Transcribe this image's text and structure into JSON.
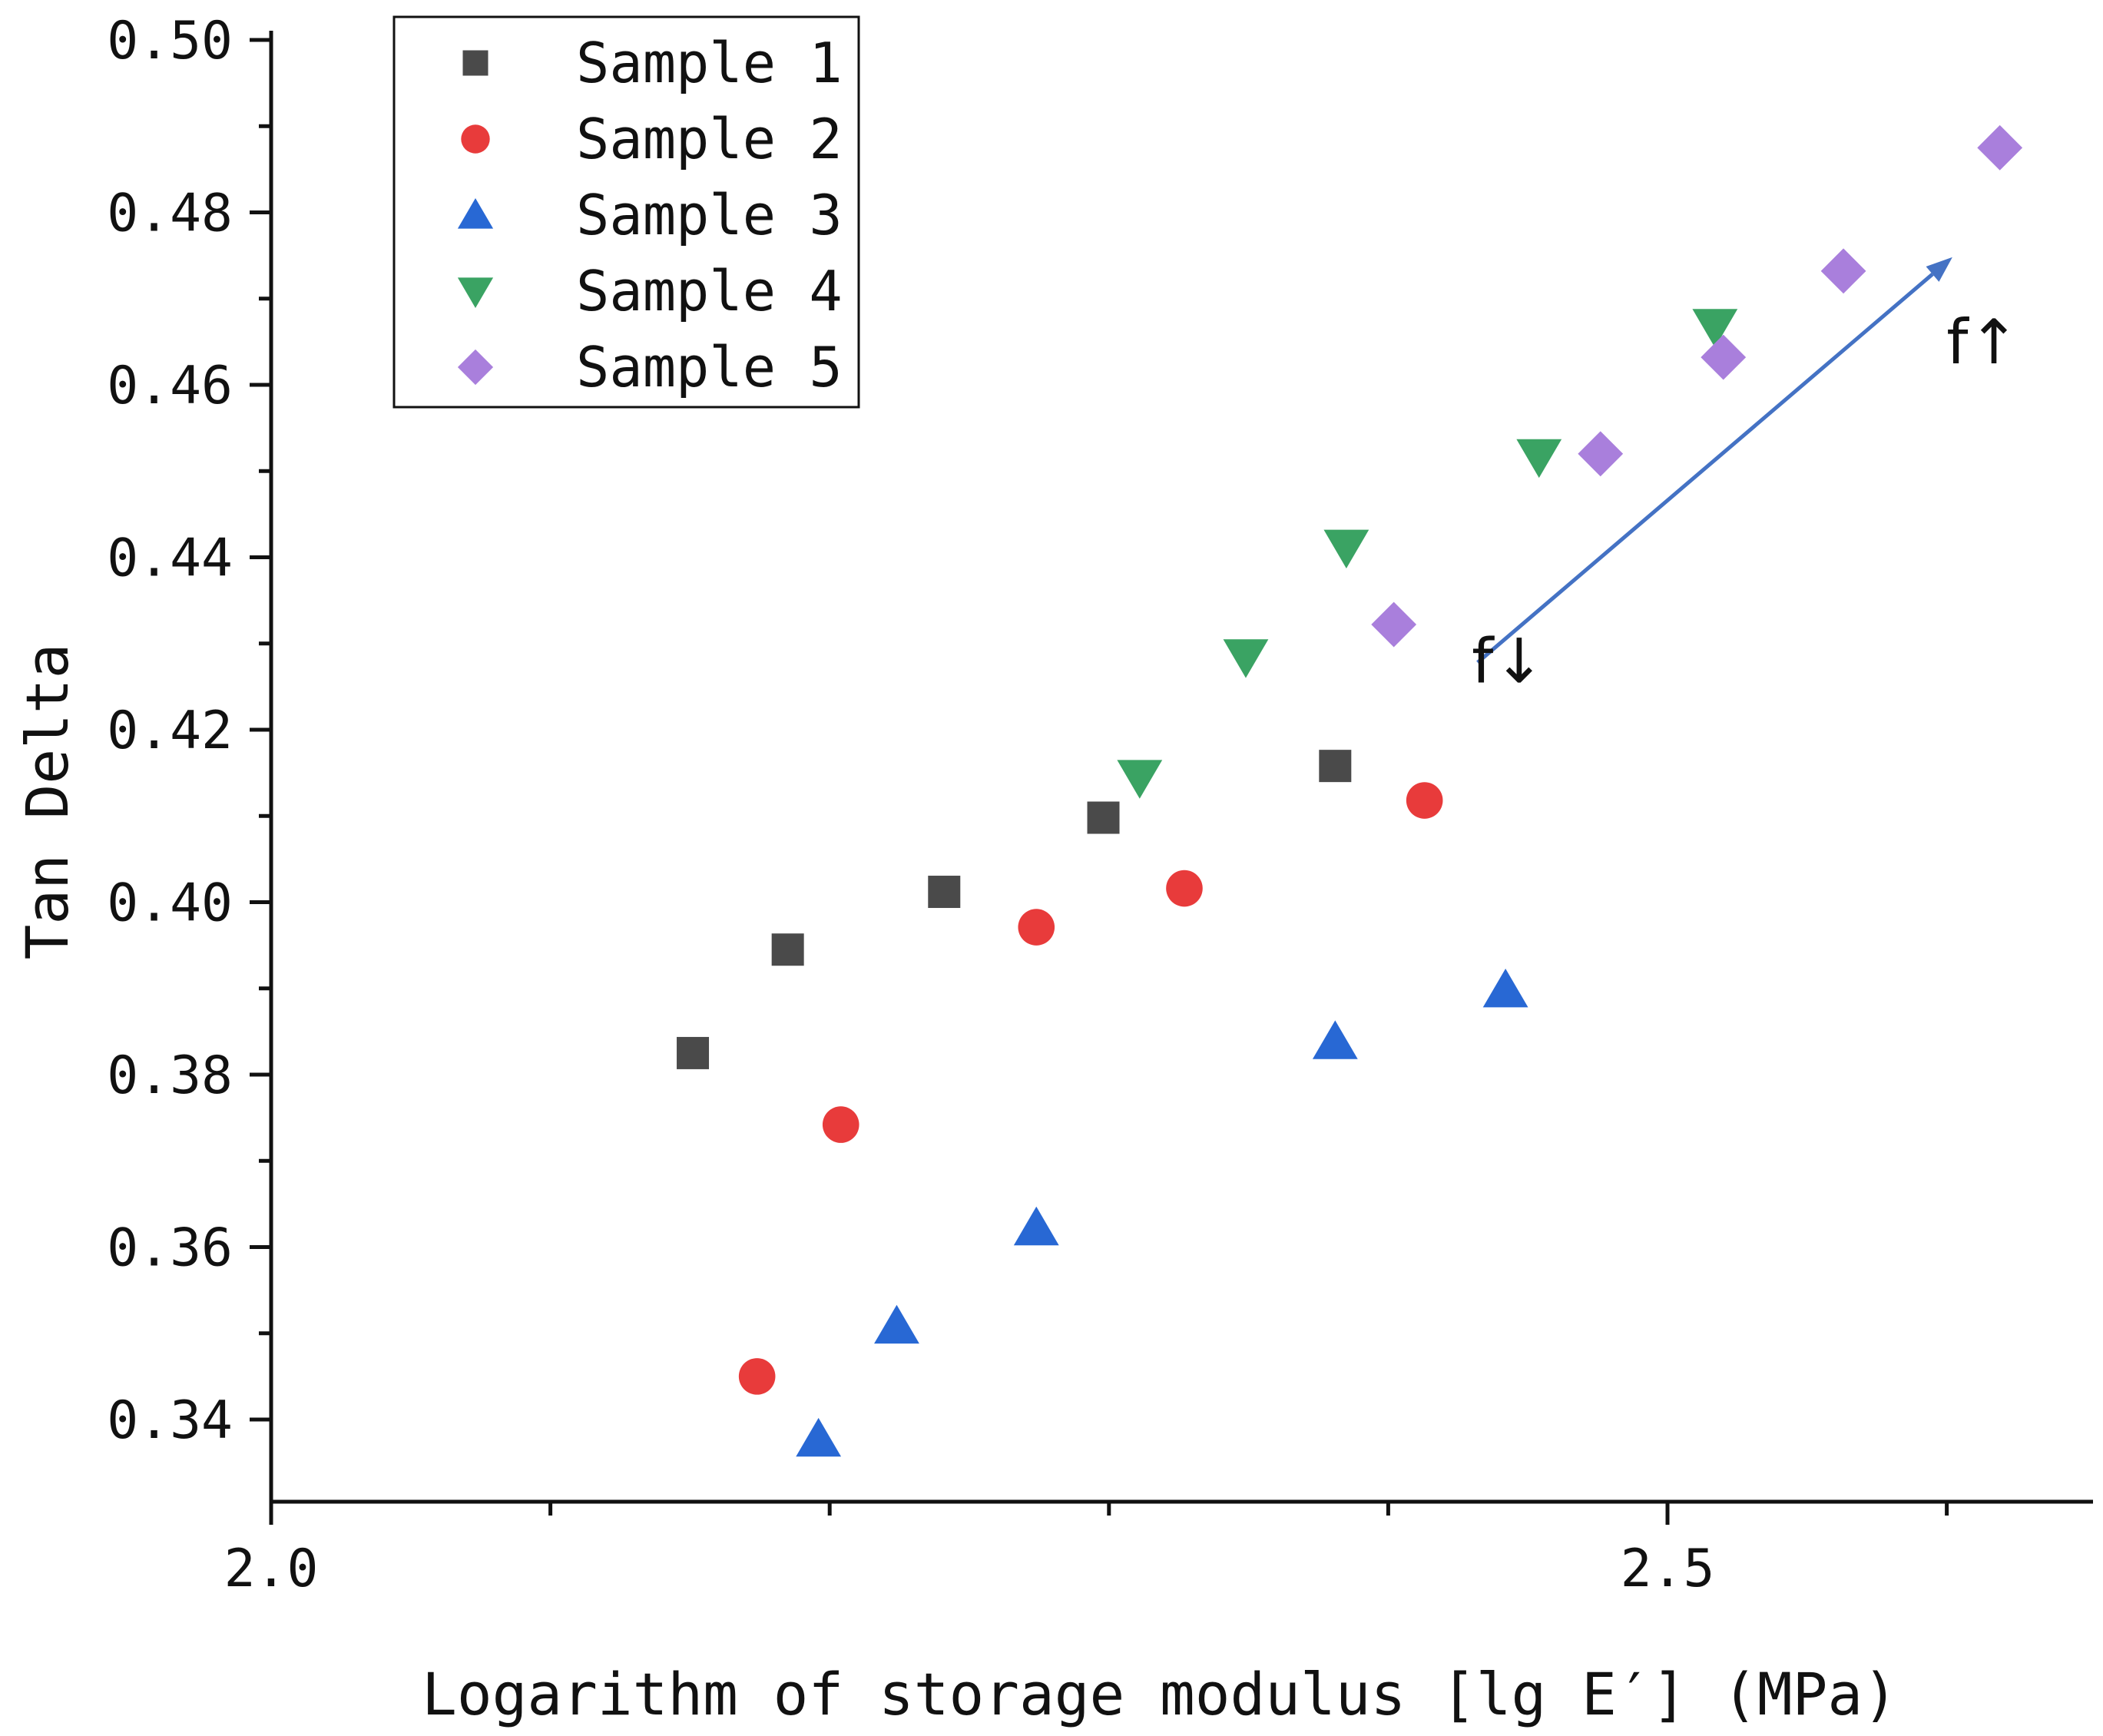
{
  "chart_data": {
    "type": "scatter",
    "xlabel": "Logarithm of storage modulus [lg E′] (MPa)",
    "ylabel": "Tan Delta",
    "xlim": [
      2.0,
      2.65
    ],
    "ylim": [
      0.33,
      0.5
    ],
    "x_ticks": [
      "2.0",
      "2.5"
    ],
    "y_ticks": [
      "0.34",
      "0.36",
      "0.38",
      "0.40",
      "0.42",
      "0.44",
      "0.46",
      "0.48",
      "0.50"
    ],
    "grid": false,
    "legend_position": "top-left",
    "series": [
      {
        "name": "Sample 1",
        "marker": "square",
        "color": "#4a4a4a",
        "points": [
          [
            2.151,
            0.3825
          ],
          [
            2.185,
            0.3945
          ],
          [
            2.241,
            0.4012
          ],
          [
            2.298,
            0.4098
          ],
          [
            2.381,
            0.4158
          ]
        ]
      },
      {
        "name": "Sample 2",
        "marker": "circle",
        "color": "#e83b3b",
        "points": [
          [
            2.174,
            0.345
          ],
          [
            2.204,
            0.3742
          ],
          [
            2.274,
            0.3971
          ],
          [
            2.327,
            0.4016
          ],
          [
            2.413,
            0.4118
          ]
        ]
      },
      {
        "name": "Sample 3",
        "marker": "triangle-up",
        "color": "#2868d4",
        "points": [
          [
            2.196,
            0.3377
          ],
          [
            2.224,
            0.3508
          ],
          [
            2.274,
            0.3622
          ],
          [
            2.381,
            0.3838
          ],
          [
            2.442,
            0.3898
          ]
        ]
      },
      {
        "name": "Sample 4",
        "marker": "triangle-down",
        "color": "#3aa363",
        "points": [
          [
            2.311,
            0.4145
          ],
          [
            2.349,
            0.4285
          ],
          [
            2.385,
            0.4412
          ],
          [
            2.454,
            0.4517
          ],
          [
            2.517,
            0.4668
          ]
        ]
      },
      {
        "name": "Sample 5",
        "marker": "diamond",
        "color": "#a97fdc",
        "points": [
          [
            2.402,
            0.4322
          ],
          [
            2.476,
            0.452
          ],
          [
            2.52,
            0.4632
          ],
          [
            2.563,
            0.4732
          ],
          [
            2.619,
            0.4875
          ]
        ]
      }
    ],
    "annotations": [
      {
        "text": "f↓",
        "x": 2.443,
        "y": 0.4255
      },
      {
        "text": "f↑",
        "x": 2.613,
        "y": 0.4625
      }
    ],
    "arrow": {
      "from": [
        2.432,
        0.4278
      ],
      "to": [
        2.602,
        0.4748
      ],
      "color": "#4472c4"
    }
  }
}
